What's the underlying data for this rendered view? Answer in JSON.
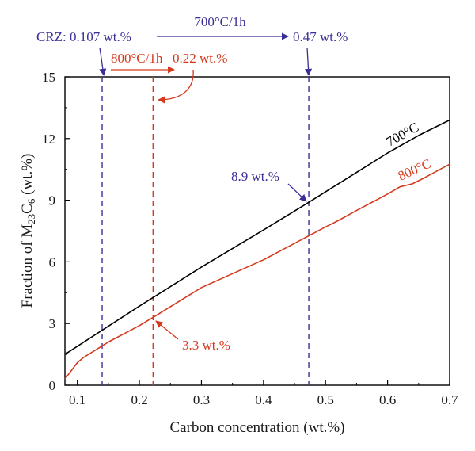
{
  "chart_data": {
    "type": "line",
    "xlabel": "Carbon concentration (wt.%)",
    "ylabel": {
      "main": "Fraction of M",
      "sub1": "23",
      "mid": "C",
      "sub2": "6",
      "end": " (wt.%)"
    },
    "xlim": [
      0.08,
      0.7
    ],
    "ylim": [
      0,
      15
    ],
    "x_ticks": [
      0.1,
      0.2,
      0.3,
      0.4,
      0.5,
      0.6,
      0.7
    ],
    "x_tick_labels": [
      "0.1",
      "0.2",
      "0.3",
      "0.4",
      "0.5",
      "0.6",
      "0.7"
    ],
    "y_ticks": [
      0,
      3,
      6,
      9,
      12,
      15
    ],
    "y_tick_labels": [
      "0",
      "3",
      "6",
      "9",
      "12",
      "15"
    ],
    "grid": false,
    "series": [
      {
        "name": "700°C",
        "color": "#000000",
        "x": [
          0.08,
          0.2,
          0.3,
          0.4,
          0.473,
          0.55,
          0.6,
          0.65,
          0.7
        ],
        "y": [
          1.5,
          3.85,
          5.75,
          7.55,
          8.9,
          10.35,
          11.3,
          12.15,
          12.9
        ]
      },
      {
        "name": "800°C",
        "color": "#d63a1e",
        "x": [
          0.08,
          0.1,
          0.11,
          0.15,
          0.2,
          0.222,
          0.3,
          0.4,
          0.5,
          0.52,
          0.55,
          0.6,
          0.62,
          0.64,
          0.66,
          0.7
        ],
        "y": [
          0.3,
          1.1,
          1.35,
          2.1,
          2.9,
          3.3,
          4.75,
          6.1,
          7.7,
          8.0,
          8.5,
          9.3,
          9.65,
          9.8,
          10.1,
          10.75
        ]
      }
    ],
    "vertical_lines": [
      {
        "x": 0.14,
        "color": "#3a2f96"
      },
      {
        "x": 0.222,
        "color": "#d63a1e"
      },
      {
        "x": 0.473,
        "color": "#3a2f96"
      }
    ],
    "annotations": {
      "crz": "CRZ: 0.107 wt.%",
      "blue_heat": "700°C/1h",
      "blue_result": "0.47 wt.%",
      "red_heat": "800°C/1h",
      "red_result": "0.22 wt.%",
      "blue_point": "8.9 wt.%",
      "red_point": "3.3 wt.%",
      "label_700": "700°C",
      "label_800": "800°C"
    },
    "colors": {
      "blue": "#3a2f96",
      "red": "#d63a1e",
      "black": "#000000"
    }
  }
}
